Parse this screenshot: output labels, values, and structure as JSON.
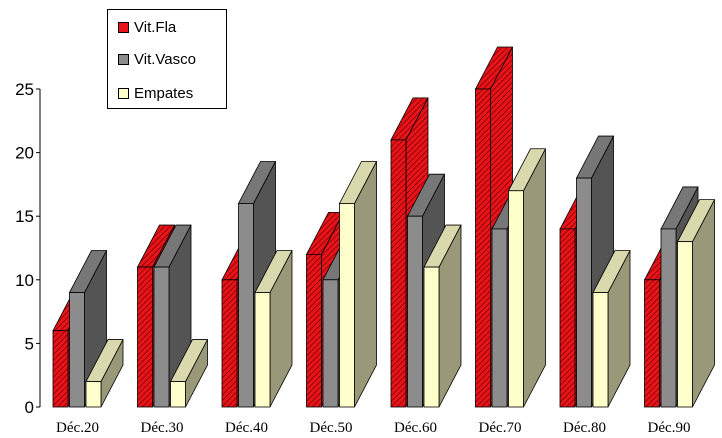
{
  "chart_data": {
    "type": "bar",
    "categories": [
      "Déc.20",
      "Déc.30",
      "Déc.40",
      "Déc.50",
      "Déc.60",
      "Déc.70",
      "Déc.80",
      "Déc.90"
    ],
    "series": [
      {
        "name": "Vit.Fla",
        "values": [
          6,
          11,
          10,
          12,
          21,
          25,
          14,
          10
        ],
        "color": "#e8141a"
      },
      {
        "name": "Vit.Vasco",
        "values": [
          9,
          11,
          16,
          10,
          15,
          14,
          18,
          14
        ],
        "color": "#8c8c8c"
      },
      {
        "name": "Empates",
        "values": [
          2,
          2,
          9,
          16,
          11,
          17,
          9,
          13
        ],
        "color": "#ffffcc"
      }
    ],
    "y_ticks": [
      "0",
      "5",
      "10",
      "15",
      "20",
      "25"
    ],
    "ylim": [
      0,
      25
    ],
    "legend_position": "top-left",
    "grid": false,
    "three_d": true
  }
}
